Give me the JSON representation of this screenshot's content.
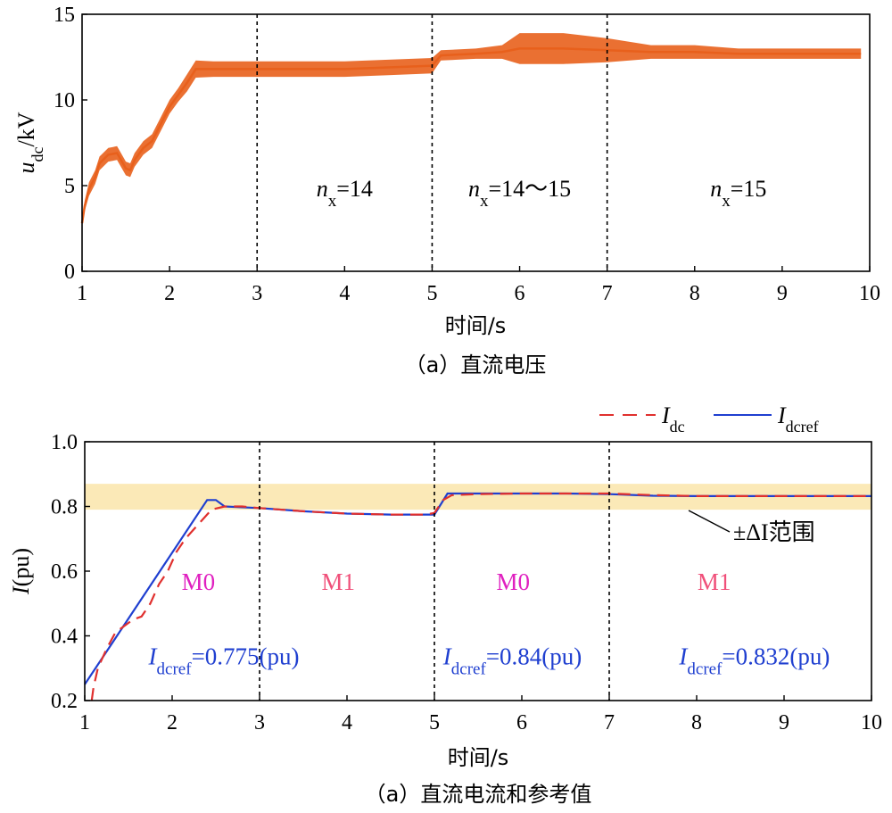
{
  "chart_data": [
    {
      "type": "line",
      "title": "",
      "caption": "（a）直流电压",
      "xlabel": "时间/s",
      "ylabel": {
        "base": "u",
        "sub": "dc",
        "rest": "/kV"
      },
      "xlim": [
        1,
        10
      ],
      "ylim": [
        0,
        15
      ],
      "xticks": [
        "1",
        "2",
        "3",
        "4",
        "5",
        "6",
        "7",
        "8",
        "9",
        "10"
      ],
      "yticks": [
        "0",
        "5",
        "10",
        "15"
      ],
      "grid": false,
      "dividers": [
        3,
        5,
        7
      ],
      "series": [
        {
          "color": "#e8601c",
          "x": [
            1.0,
            1.03,
            1.08,
            1.15,
            1.2,
            1.3,
            1.4,
            1.5,
            1.55,
            1.6,
            1.7,
            1.8,
            1.9,
            2.0,
            2.1,
            2.2,
            2.3,
            2.5,
            3.0,
            3.5,
            4.0,
            4.5,
            5.0,
            5.1,
            5.5,
            5.8,
            6.0,
            6.5,
            7.0,
            7.5,
            8.0,
            8.5,
            9.0,
            9.5,
            9.9
          ],
          "values": [
            2.8,
            3.8,
            4.8,
            5.5,
            6.3,
            6.8,
            6.9,
            6.0,
            5.9,
            6.5,
            7.2,
            7.6,
            8.6,
            9.6,
            10.3,
            11.0,
            11.8,
            11.8,
            11.8,
            11.8,
            11.8,
            11.9,
            12.0,
            12.6,
            12.7,
            12.8,
            13.0,
            13.0,
            12.9,
            12.8,
            12.8,
            12.7,
            12.7,
            12.7,
            12.7
          ],
          "band": [
            0.1,
            0.3,
            0.4,
            0.4,
            0.4,
            0.4,
            0.4,
            0.4,
            0.4,
            0.4,
            0.4,
            0.4,
            0.4,
            0.4,
            0.4,
            0.5,
            0.5,
            0.45,
            0.45,
            0.45,
            0.45,
            0.45,
            0.45,
            0.3,
            0.3,
            0.4,
            0.9,
            0.9,
            0.7,
            0.4,
            0.4,
            0.3,
            0.3,
            0.3,
            0.3
          ]
        }
      ],
      "annotations": [
        {
          "var": "n",
          "sub": "x",
          "text": "=14",
          "x": 4.0,
          "y": 5.0
        },
        {
          "var": "n",
          "sub": "x",
          "text": "=14～15",
          "x": 6.0,
          "y": 5.0
        },
        {
          "var": "n",
          "sub": "x",
          "text": "=15",
          "x": 8.5,
          "y": 5.0
        }
      ]
    },
    {
      "type": "line",
      "title": "",
      "caption": "（a）直流电流和参考值",
      "xlabel": "时间/s",
      "ylabel": {
        "base": "I",
        "rest": "(pu)"
      },
      "xlim": [
        1,
        10
      ],
      "ylim": [
        0.2,
        1.0
      ],
      "xticks": [
        "1",
        "2",
        "3",
        "4",
        "5",
        "6",
        "7",
        "8",
        "9",
        "10"
      ],
      "yticks": [
        "0.2",
        "0.4",
        "0.6",
        "0.8",
        "1.0"
      ],
      "grid": false,
      "dividers": [
        3,
        5,
        7
      ],
      "band": {
        "y0": 0.79,
        "y1": 0.87,
        "color": "#fbe9b7",
        "label": "±ΔI范围"
      },
      "legend": "top-right",
      "series": [
        {
          "name": "Idc",
          "color": "#e0302e",
          "dash": true,
          "x": [
            1.08,
            1.1,
            1.15,
            1.25,
            1.35,
            1.45,
            1.55,
            1.65,
            1.75,
            1.85,
            1.95,
            2.05,
            2.15,
            2.25,
            2.35,
            2.45,
            2.6,
            2.8,
            3.0,
            3.5,
            4.0,
            4.5,
            4.9,
            5.0,
            5.1,
            5.2,
            5.5,
            6.0,
            6.5,
            7.0,
            7.5,
            8.0,
            9.0,
            10.0
          ],
          "values": [
            0.2,
            0.24,
            0.3,
            0.36,
            0.41,
            0.43,
            0.45,
            0.46,
            0.5,
            0.56,
            0.6,
            0.66,
            0.7,
            0.73,
            0.76,
            0.79,
            0.8,
            0.8,
            0.795,
            0.785,
            0.778,
            0.775,
            0.775,
            0.78,
            0.82,
            0.835,
            0.838,
            0.84,
            0.84,
            0.84,
            0.835,
            0.832,
            0.832,
            0.832
          ]
        },
        {
          "name": "Idcref",
          "color": "#1f3fd0",
          "dash": false,
          "x": [
            1.0,
            2.4,
            2.5,
            2.6,
            3.0,
            3.5,
            4.0,
            4.5,
            4.9,
            5.0,
            5.15,
            5.5,
            6.0,
            6.5,
            7.0,
            7.5,
            8.0,
            9.0,
            10.0
          ],
          "values": [
            0.25,
            0.82,
            0.82,
            0.8,
            0.795,
            0.785,
            0.778,
            0.775,
            0.775,
            0.775,
            0.84,
            0.84,
            0.84,
            0.84,
            0.838,
            0.833,
            0.832,
            0.832,
            0.832
          ]
        }
      ],
      "modes": [
        {
          "text": "M0",
          "x": 2.3,
          "y": 0.57,
          "color": "#e020c0"
        },
        {
          "text": "M1",
          "x": 3.9,
          "y": 0.57,
          "color": "#f0507a"
        },
        {
          "text": "M0",
          "x": 5.9,
          "y": 0.57,
          "color": "#e020c0"
        },
        {
          "text": "M1",
          "x": 8.2,
          "y": 0.57,
          "color": "#f0507a"
        }
      ],
      "refs": [
        {
          "var": "I",
          "sub": "dcref",
          "text": "=0.775(pu)",
          "x": 1.73,
          "y": 0.34
        },
        {
          "var": "I",
          "sub": "dcref",
          "text": "=0.84(pu)",
          "x": 5.1,
          "y": 0.34
        },
        {
          "var": "I",
          "sub": "dcref",
          "text": "=0.832(pu)",
          "x": 7.8,
          "y": 0.34
        }
      ]
    }
  ]
}
